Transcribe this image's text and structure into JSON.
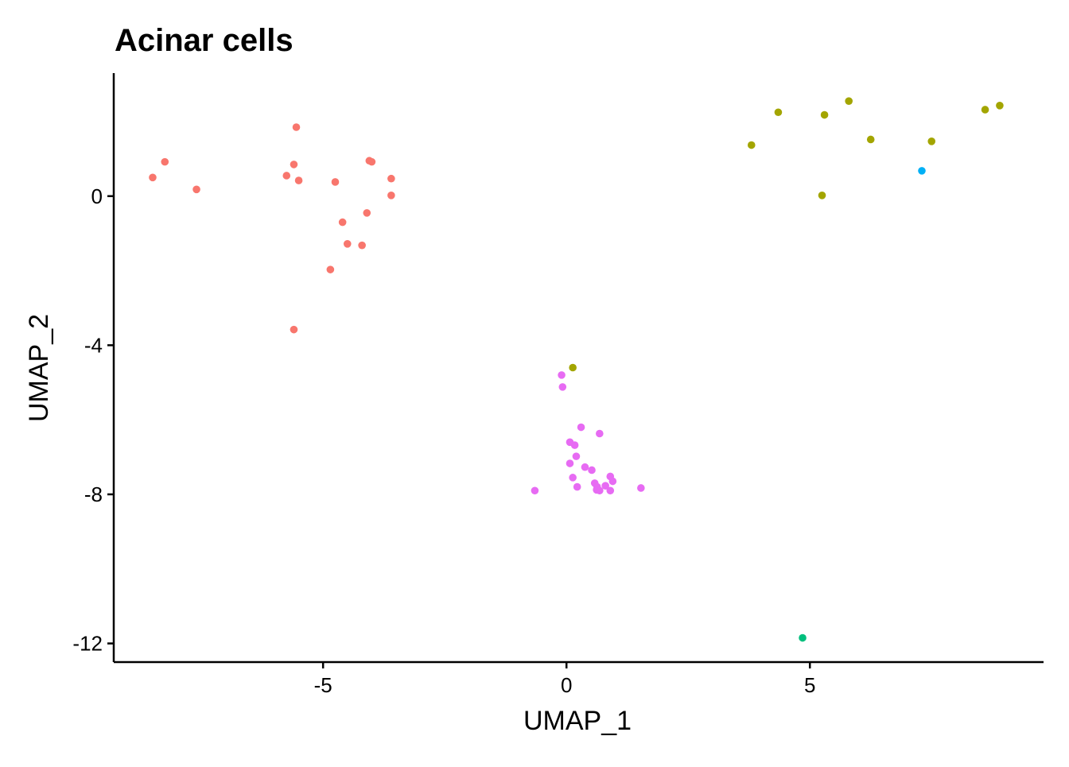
{
  "chart_data": {
    "type": "scatter",
    "title": "Acinar cells",
    "xlabel": "UMAP_1",
    "ylabel": "UMAP_2",
    "xlim": [
      -9.3,
      9.8
    ],
    "ylim": [
      -12.5,
      3.3
    ],
    "xticks": [
      -5,
      0,
      5
    ],
    "xtick_labels": [
      "-5",
      "0",
      "5"
    ],
    "yticks": [
      0,
      -4,
      -8,
      -12
    ],
    "ytick_labels": [
      "0",
      "-4",
      "-8",
      "-12"
    ],
    "grid": false,
    "legend": "none",
    "series": [
      {
        "color": "#F8766D",
        "points": [
          [
            -8.5,
            0.5
          ],
          [
            -8.25,
            0.92
          ],
          [
            -7.6,
            0.18
          ],
          [
            -5.55,
            1.85
          ],
          [
            -5.6,
            0.85
          ],
          [
            -5.75,
            0.55
          ],
          [
            -5.5,
            0.42
          ],
          [
            -4.75,
            0.38
          ],
          [
            -4.05,
            0.95
          ],
          [
            -4.0,
            0.92
          ],
          [
            -3.6,
            0.47
          ],
          [
            -3.6,
            0.02
          ],
          [
            -4.1,
            -0.45
          ],
          [
            -4.6,
            -0.7
          ],
          [
            -4.5,
            -1.28
          ],
          [
            -4.2,
            -1.32
          ],
          [
            -4.85,
            -1.97
          ],
          [
            -5.6,
            -3.58
          ]
        ]
      },
      {
        "color": "#A3A500",
        "points": [
          [
            3.8,
            1.37
          ],
          [
            4.35,
            2.25
          ],
          [
            5.3,
            2.18
          ],
          [
            5.8,
            2.55
          ],
          [
            6.25,
            1.52
          ],
          [
            7.5,
            1.47
          ],
          [
            8.6,
            2.32
          ],
          [
            8.9,
            2.43
          ],
          [
            5.25,
            0.02
          ],
          [
            0.13,
            -4.6
          ]
        ]
      },
      {
        "color": "#00BF7D",
        "points": [
          [
            4.85,
            -11.85
          ]
        ]
      },
      {
        "color": "#00B0F6",
        "points": [
          [
            7.3,
            0.68
          ]
        ]
      },
      {
        "color": "#E76BF3",
        "points": [
          [
            -0.1,
            -4.8
          ],
          [
            -0.08,
            -5.12
          ],
          [
            0.3,
            -6.2
          ],
          [
            0.68,
            -6.37
          ],
          [
            0.07,
            -6.6
          ],
          [
            0.17,
            -6.68
          ],
          [
            0.2,
            -6.98
          ],
          [
            0.07,
            -7.17
          ],
          [
            0.38,
            -7.27
          ],
          [
            0.52,
            -7.35
          ],
          [
            0.13,
            -7.55
          ],
          [
            0.9,
            -7.52
          ],
          [
            0.95,
            -7.65
          ],
          [
            0.58,
            -7.7
          ],
          [
            0.63,
            -7.8
          ],
          [
            0.8,
            -7.77
          ],
          [
            0.22,
            -7.8
          ],
          [
            0.62,
            -7.88
          ],
          [
            0.68,
            -7.9
          ],
          [
            0.9,
            -7.9
          ],
          [
            -0.65,
            -7.9
          ],
          [
            1.53,
            -7.83
          ]
        ]
      }
    ]
  }
}
